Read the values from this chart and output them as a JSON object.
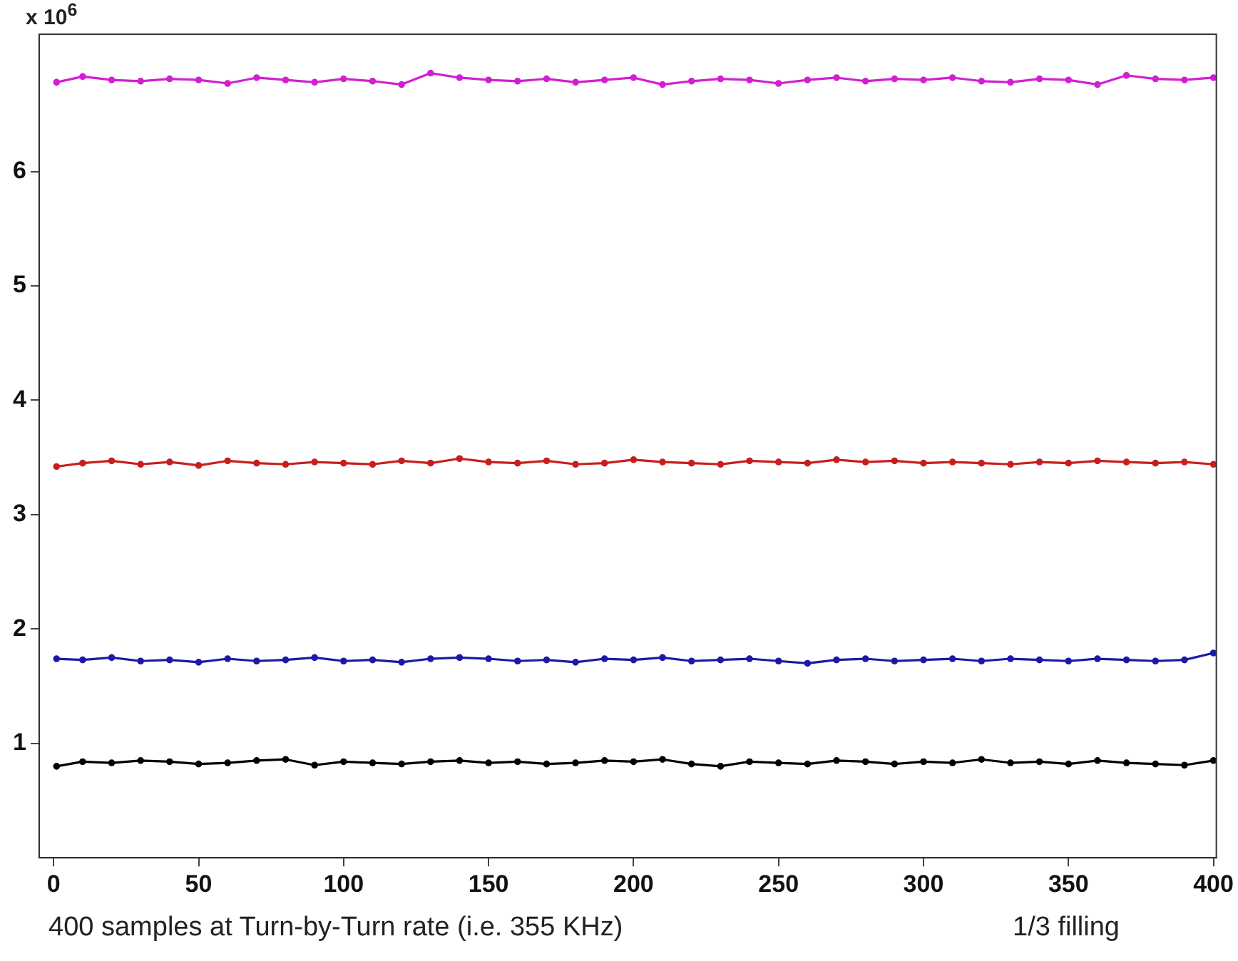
{
  "chart_data": {
    "type": "line",
    "xlabel": "400 samples at Turn-by-Turn rate (i.e. 355 KHz)",
    "annotations": [
      "x 10$^{6}$",
      "1/3 filling"
    ],
    "xlim": [
      -5,
      401
    ],
    "ylim": [
      0,
      7.2
    ],
    "xticks": [
      0,
      50,
      100,
      150,
      200,
      250,
      300,
      350,
      400
    ],
    "yticks": [
      1,
      2,
      3,
      4,
      5,
      6
    ],
    "grid": false,
    "legend": false,
    "marker": "circle",
    "line_style": "solid",
    "x": [
      1,
      10,
      20,
      30,
      40,
      50,
      60,
      70,
      80,
      90,
      100,
      110,
      120,
      130,
      140,
      150,
      160,
      170,
      180,
      190,
      200,
      210,
      220,
      230,
      240,
      250,
      260,
      270,
      280,
      290,
      300,
      310,
      320,
      330,
      340,
      350,
      360,
      370,
      380,
      390,
      400
    ],
    "series": [
      {
        "color": "#d21fd2",
        "values": [
          6.78,
          6.83,
          6.8,
          6.79,
          6.81,
          6.8,
          6.77,
          6.82,
          6.8,
          6.78,
          6.81,
          6.79,
          6.76,
          6.86,
          6.82,
          6.8,
          6.79,
          6.81,
          6.78,
          6.8,
          6.82,
          6.76,
          6.79,
          6.81,
          6.8,
          6.77,
          6.8,
          6.82,
          6.79,
          6.81,
          6.8,
          6.82,
          6.79,
          6.78,
          6.81,
          6.8,
          6.76,
          6.84,
          6.81,
          6.8,
          6.82
        ]
      },
      {
        "color": "#c81e1e",
        "values": [
          3.42,
          3.45,
          3.47,
          3.44,
          3.46,
          3.43,
          3.47,
          3.45,
          3.44,
          3.46,
          3.45,
          3.44,
          3.47,
          3.45,
          3.49,
          3.46,
          3.45,
          3.47,
          3.44,
          3.45,
          3.48,
          3.46,
          3.45,
          3.44,
          3.47,
          3.46,
          3.45,
          3.48,
          3.46,
          3.47,
          3.45,
          3.46,
          3.45,
          3.44,
          3.46,
          3.45,
          3.47,
          3.46,
          3.45,
          3.46,
          3.44
        ]
      },
      {
        "color": "#1a1aa6",
        "values": [
          1.74,
          1.73,
          1.75,
          1.72,
          1.73,
          1.71,
          1.74,
          1.72,
          1.73,
          1.75,
          1.72,
          1.73,
          1.71,
          1.74,
          1.75,
          1.74,
          1.72,
          1.73,
          1.71,
          1.74,
          1.73,
          1.75,
          1.72,
          1.73,
          1.74,
          1.72,
          1.7,
          1.73,
          1.74,
          1.72,
          1.73,
          1.74,
          1.72,
          1.74,
          1.73,
          1.72,
          1.74,
          1.73,
          1.72,
          1.73,
          1.79
        ]
      },
      {
        "color": "#000000",
        "values": [
          0.8,
          0.84,
          0.83,
          0.85,
          0.84,
          0.82,
          0.83,
          0.85,
          0.86,
          0.81,
          0.84,
          0.83,
          0.82,
          0.84,
          0.85,
          0.83,
          0.84,
          0.82,
          0.83,
          0.85,
          0.84,
          0.86,
          0.82,
          0.8,
          0.84,
          0.83,
          0.82,
          0.85,
          0.84,
          0.82,
          0.84,
          0.83,
          0.86,
          0.83,
          0.84,
          0.82,
          0.85,
          0.83,
          0.82,
          0.81,
          0.85
        ]
      }
    ]
  }
}
